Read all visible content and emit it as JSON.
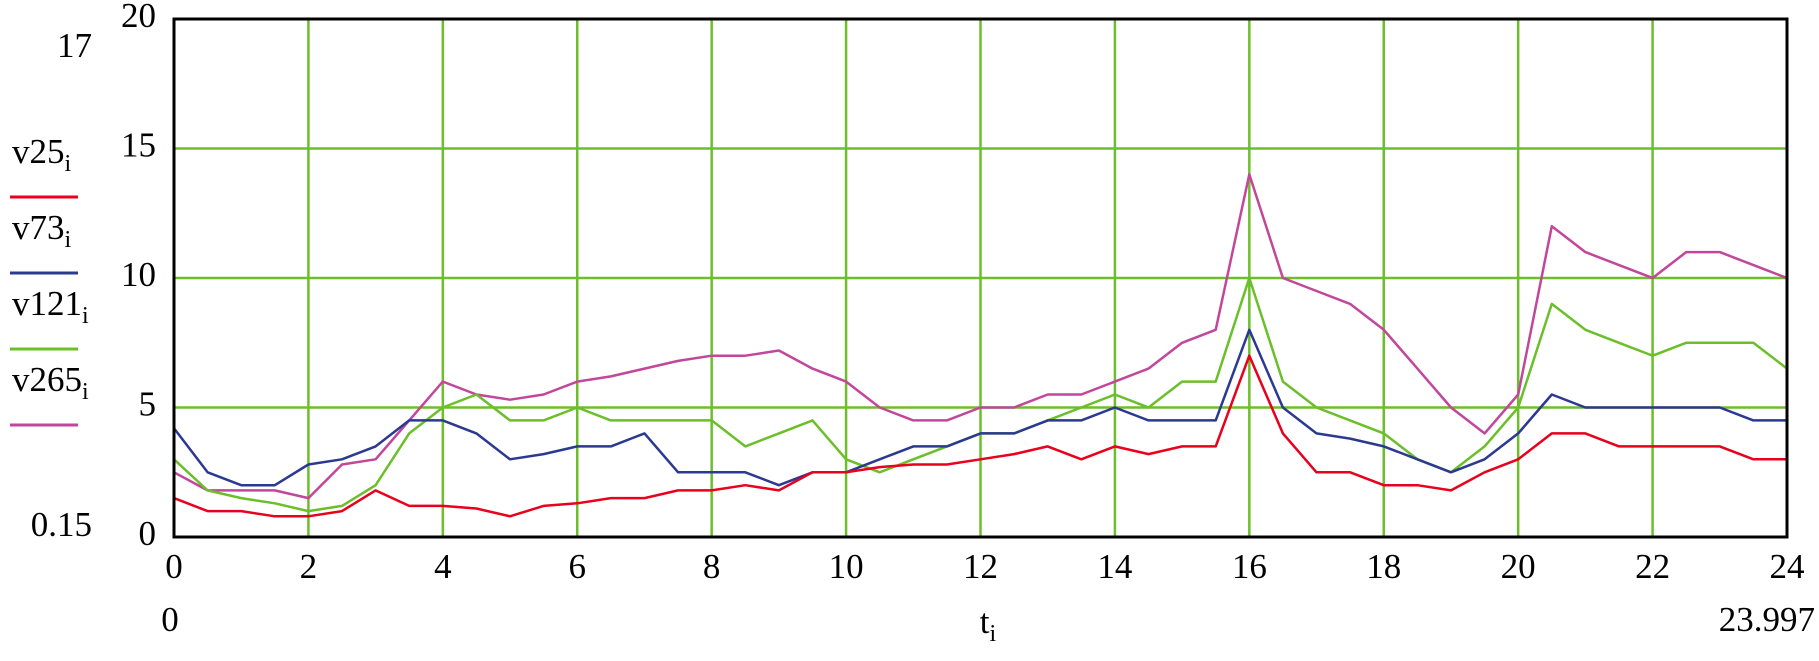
{
  "chart_data": {
    "type": "line",
    "x_label": "t",
    "x_label_subscript": "i",
    "range_labels": {
      "ymax": 17,
      "ymin": 0.15,
      "xmin": 0,
      "xmax": 23.997
    },
    "xlim": [
      0,
      24
    ],
    "ylim": [
      0,
      20
    ],
    "xticks": [
      0,
      2,
      4,
      6,
      8,
      10,
      12,
      14,
      16,
      18,
      20,
      22,
      24
    ],
    "yticks": [
      0,
      5,
      10,
      15,
      20
    ],
    "grid": true,
    "grid_color": "#6cbf2a",
    "x": [
      0,
      0.5,
      1,
      1.5,
      2,
      2.5,
      3,
      3.5,
      4,
      4.5,
      5,
      5.5,
      6,
      6.5,
      7,
      7.5,
      8,
      8.5,
      9,
      9.5,
      10,
      10.5,
      11,
      11.5,
      12,
      12.5,
      13,
      13.5,
      14,
      14.5,
      15,
      15.5,
      16,
      16.5,
      17,
      17.5,
      18,
      18.5,
      19,
      19.5,
      20,
      20.5,
      21,
      21.5,
      22,
      22.5,
      23,
      23.5,
      24
    ],
    "series": [
      {
        "name": "v25",
        "subscript": "i",
        "color": "#e8001c",
        "values": [
          1.5,
          1,
          1,
          0.8,
          0.8,
          1,
          1.8,
          1.2,
          1.2,
          1.1,
          0.8,
          1.2,
          1.3,
          1.5,
          1.5,
          1.8,
          1.8,
          2,
          1.8,
          2.5,
          2.5,
          2.7,
          2.8,
          2.8,
          3,
          3.2,
          3.5,
          3,
          3.5,
          3.2,
          3.5,
          3.5,
          7,
          4,
          2.5,
          2.5,
          2,
          2,
          1.8,
          2.5,
          3,
          4,
          4,
          3.5,
          3.5,
          3.5,
          3.5,
          3,
          3
        ]
      },
      {
        "name": "v73",
        "subscript": "i",
        "color": "#2b3990",
        "values": [
          4.2,
          2.5,
          2,
          2,
          2.8,
          3,
          3.5,
          4.5,
          4.5,
          4,
          3,
          3.2,
          3.5,
          3.5,
          4,
          2.5,
          2.5,
          2.5,
          2,
          2.5,
          2.5,
          3,
          3.5,
          3.5,
          4,
          4,
          4.5,
          4.5,
          5,
          4.5,
          4.5,
          4.5,
          8,
          5,
          4,
          3.8,
          3.5,
          3,
          2.5,
          3,
          4,
          5.5,
          5,
          5,
          5,
          5,
          5,
          4.5,
          4.5
        ]
      },
      {
        "name": "v121",
        "subscript": "i",
        "color": "#6bbf2a",
        "values": [
          3,
          1.8,
          1.5,
          1.3,
          1,
          1.2,
          2,
          4,
          5,
          5.5,
          4.5,
          4.5,
          5,
          4.5,
          4.5,
          4.5,
          4.5,
          3.5,
          4,
          4.5,
          3,
          2.5,
          3,
          3.5,
          4,
          4,
          4.5,
          5,
          5.5,
          5,
          6,
          6,
          10,
          6,
          5,
          4.5,
          4,
          3,
          2.5,
          3.5,
          5,
          9,
          8,
          7.5,
          7,
          7.5,
          7.5,
          7.5,
          6.5
        ]
      },
      {
        "name": "v265",
        "subscript": "i",
        "color": "#c2479b",
        "values": [
          2.5,
          1.8,
          1.8,
          1.8,
          1.5,
          2.8,
          3,
          4.5,
          6,
          5.5,
          5.3,
          5.5,
          6,
          6.2,
          6.5,
          6.8,
          7,
          7,
          7.2,
          6.5,
          6,
          5,
          4.5,
          4.5,
          5,
          5,
          5.5,
          5.5,
          6,
          6.5,
          7.5,
          8,
          14,
          10,
          9.5,
          9,
          8,
          6.5,
          5,
          4,
          5.5,
          12,
          11,
          10.5,
          10,
          11,
          11,
          10.5,
          10
        ]
      }
    ]
  }
}
